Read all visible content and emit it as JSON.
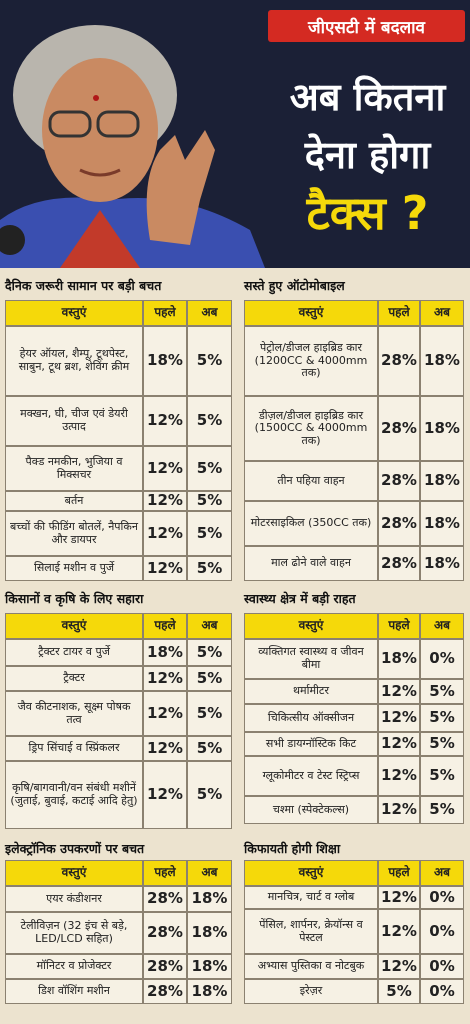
{
  "header": {
    "badge": "जीएसटी में बदलाव",
    "title_lines": [
      "अब कितना",
      "देना होगा",
      "टैक्स ?"
    ]
  },
  "sections": [
    {
      "title": "दैनिक जरूरी सामान पर बड़ी बचत",
      "columns": [
        "वस्तुएं",
        "पहले",
        "अब"
      ],
      "rows": [
        [
          "हेयर ऑयल, शैम्पू, टूथपेस्ट, साबुन, टूथ ब्रश, शेविंग क्रीम",
          "18%",
          "5%"
        ],
        [
          "मक्खन, घी, चीज एवं डेयरी उत्पाद",
          "12%",
          "5%"
        ],
        [
          "पैक्ड नमकीन, भुजिया व मिक्सचर",
          "12%",
          "5%"
        ],
        [
          "बर्तन",
          "12%",
          "5%"
        ],
        [
          "बच्चों की फीडिंग बोतलें, नैपकिन और डायपर",
          "12%",
          "5%"
        ],
        [
          "सिलाई मशीन व पुर्जे",
          "12%",
          "5%"
        ]
      ]
    },
    {
      "title": "सस्ते हुए ऑटोमोबाइल",
      "columns": [
        "वस्तुएं",
        "पहले",
        "अब"
      ],
      "rows": [
        [
          "पेट्रोल/डीजल हाइब्रिड कार (1200CC & 4000mm तक)",
          "28%",
          "18%"
        ],
        [
          "डीज़ल/डीजल हाइब्रिड कार (1500CC & 4000mm तक)",
          "28%",
          "18%"
        ],
        [
          "तीन पहिया वाहन",
          "28%",
          "18%"
        ],
        [
          "मोटरसाइकिल (350CC तक)",
          "28%",
          "18%"
        ],
        [
          "माल ढोने वाले वाहन",
          "28%",
          "18%"
        ]
      ]
    },
    {
      "title": "किसानों व कृषि के लिए सहारा",
      "columns": [
        "वस्तुएं",
        "पहले",
        "अब"
      ],
      "rows": [
        [
          "ट्रैक्टर टायर व पुर्जे",
          "18%",
          "5%"
        ],
        [
          "ट्रैक्टर",
          "12%",
          "5%"
        ],
        [
          "जैव कीटनाशक, सूक्ष्म पोषक तत्व",
          "12%",
          "5%"
        ],
        [
          "ड्रिप सिंचाई व स्प्रिंकलर",
          "12%",
          "5%"
        ],
        [
          "कृषि/बागवानी/वन संबंधी मशीनें (जुताई, बुवाई, कटाई आदि हेतु)",
          "12%",
          "5%"
        ]
      ]
    },
    {
      "title": "स्वास्थ्य क्षेत्र में बड़ी राहत",
      "columns": [
        "वस्तुएं",
        "पहले",
        "अब"
      ],
      "rows": [
        [
          "व्यक्तिगत स्वास्थ्य व जीवन बीमा",
          "18%",
          "0%"
        ],
        [
          "थर्मामीटर",
          "12%",
          "5%"
        ],
        [
          "चिकित्सीय ऑक्सीजन",
          "12%",
          "5%"
        ],
        [
          "सभी डायग्नॉस्टिक किट",
          "12%",
          "5%"
        ],
        [
          "ग्लूकोमीटर व टेस्ट स्ट्रिप्स",
          "12%",
          "5%"
        ],
        [
          "चश्मा (स्पेक्टेकल्स)",
          "12%",
          "5%"
        ]
      ]
    },
    {
      "title": "इलेक्ट्रॉनिक उपकरणों पर बचत",
      "columns": [
        "वस्तुएं",
        "पहले",
        "अब"
      ],
      "rows": [
        [
          "एयर कंडीशनर",
          "28%",
          "18%"
        ],
        [
          "टेलीविज़न (32 इंच से बड़े, LED/LCD सहित)",
          "28%",
          "18%"
        ],
        [
          "मॉनिटर व प्रोजेक्टर",
          "28%",
          "18%"
        ],
        [
          "डिश वॉशिंग मशीन",
          "28%",
          "18%"
        ]
      ]
    },
    {
      "title": "किफायती होगी शिक्षा",
      "columns": [
        "वस्तुएं",
        "पहले",
        "अब"
      ],
      "rows": [
        [
          "मानचित्र, चार्ट व ग्लोब",
          "12%",
          "0%"
        ],
        [
          "पेंसिल, शार्पनर, क्रेयॉन्स व पेस्टल",
          "12%",
          "0%"
        ],
        [
          "अभ्यास पुस्तिका व नोटबुक",
          "12%",
          "0%"
        ],
        [
          "इरेज़र",
          "5%",
          "0%"
        ]
      ]
    }
  ]
}
